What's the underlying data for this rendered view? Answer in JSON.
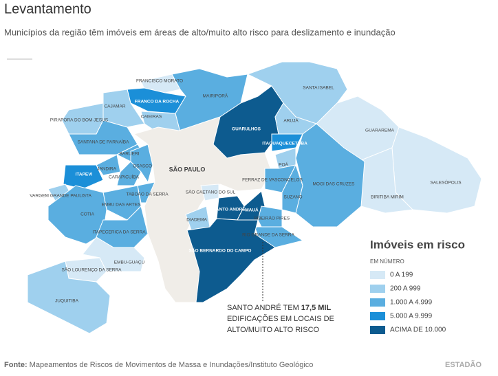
{
  "header": {
    "title": "Levantamento",
    "subtitle": "Municípios da região têm imóveis em áreas de alto/muito alto risco para deslizamento e inundação"
  },
  "legend": {
    "title": "Imóveis em risco",
    "subtitle": "EM NÚMERO",
    "items": [
      {
        "label": "0 A 199",
        "color": "#d6e9f6"
      },
      {
        "label": "200 A 999",
        "color": "#9fd0ee"
      },
      {
        "label": "1.000 A 4.999",
        "color": "#5aaee0"
      },
      {
        "label": "5.000 A 9.999",
        "color": "#1b8fd8"
      },
      {
        "label": "ACIMA DE 10.000",
        "color": "#0d5b8f"
      }
    ]
  },
  "municipalities": [
    {
      "name": "FRANCISCO MORATO",
      "class": 0
    },
    {
      "name": "FRANCO DA ROCHA",
      "class": 3
    },
    {
      "name": "CAIEIRAS",
      "class": 1
    },
    {
      "name": "MAIRIPORÃ",
      "class": 2
    },
    {
      "name": "CAJAMAR",
      "class": 1
    },
    {
      "name": "PIRAPORA DO BOM JESUS",
      "class": 1
    },
    {
      "name": "SANTANA DE PARNAÍBA",
      "class": 2
    },
    {
      "name": "BARUERI",
      "class": 2
    },
    {
      "name": "JANDIRA",
      "class": 2
    },
    {
      "name": "ITAPEVI",
      "class": 3
    },
    {
      "name": "CARAPICUÍBA",
      "class": 2
    },
    {
      "name": "OSASCO",
      "class": 2
    },
    {
      "name": "TABOÃO DA SERRA",
      "class": 2
    },
    {
      "name": "EMBU DAS ARTES",
      "class": 2
    },
    {
      "name": "VARGEM GRANDE PAULISTA",
      "class": 1
    },
    {
      "name": "COTIA",
      "class": 2
    },
    {
      "name": "ITAPECERICA DA SERRA",
      "class": 2
    },
    {
      "name": "SÃO PAULO",
      "class": null
    },
    {
      "name": "GUARULHOS",
      "class": 4
    },
    {
      "name": "SANTA ISABEL",
      "class": 1
    },
    {
      "name": "ARUJÁ",
      "class": 1
    },
    {
      "name": "GUARAREMA",
      "class": 0
    },
    {
      "name": "SALESÓPOLIS",
      "class": 0
    },
    {
      "name": "BIRITIBA MIRIM",
      "class": 0
    },
    {
      "name": "MOGI DAS CRUZES",
      "class": 2
    },
    {
      "name": "ITAQUAQUECETUBA",
      "class": 3
    },
    {
      "name": "POÁ",
      "class": 1
    },
    {
      "name": "FERRAZ DE VASCONCELOS",
      "class": 2
    },
    {
      "name": "SUZANO",
      "class": 2
    },
    {
      "name": "SÃO CAETANO DO SUL",
      "class": 0
    },
    {
      "name": "SANTO ANDRÉ",
      "class": 4
    },
    {
      "name": "MAUÁ",
      "class": 4
    },
    {
      "name": "DIADEMA",
      "class": 1
    },
    {
      "name": "RIBEIRÃO PIRES",
      "class": 2
    },
    {
      "name": "RIO GRANDE DA SERRA",
      "class": 2
    },
    {
      "name": "SÃO BERNARDO DO CAMPO",
      "class": 4
    },
    {
      "name": "SÃO LOURENÇO DA SERRA",
      "class": 0
    },
    {
      "name": "EMBU-GUAÇU",
      "class": 0
    },
    {
      "name": "JUQUITIBA",
      "class": 1
    }
  ],
  "no_data_color": "#f0ede8",
  "annotation": {
    "line1_start": "SANTO ANDRÉ TEM ",
    "line1_bold": "17,5 MIL",
    "line2": "EDIFICAÇÕES EM LOCAIS DE",
    "line3": "ALTO/MUITO ALTO RISCO"
  },
  "footer": {
    "source_label": "Fonte:",
    "source": "Mapeamentos de Riscos de Movimentos de Massa e Inundações/Instituto Geológico",
    "brand": "ESTADÃO"
  }
}
